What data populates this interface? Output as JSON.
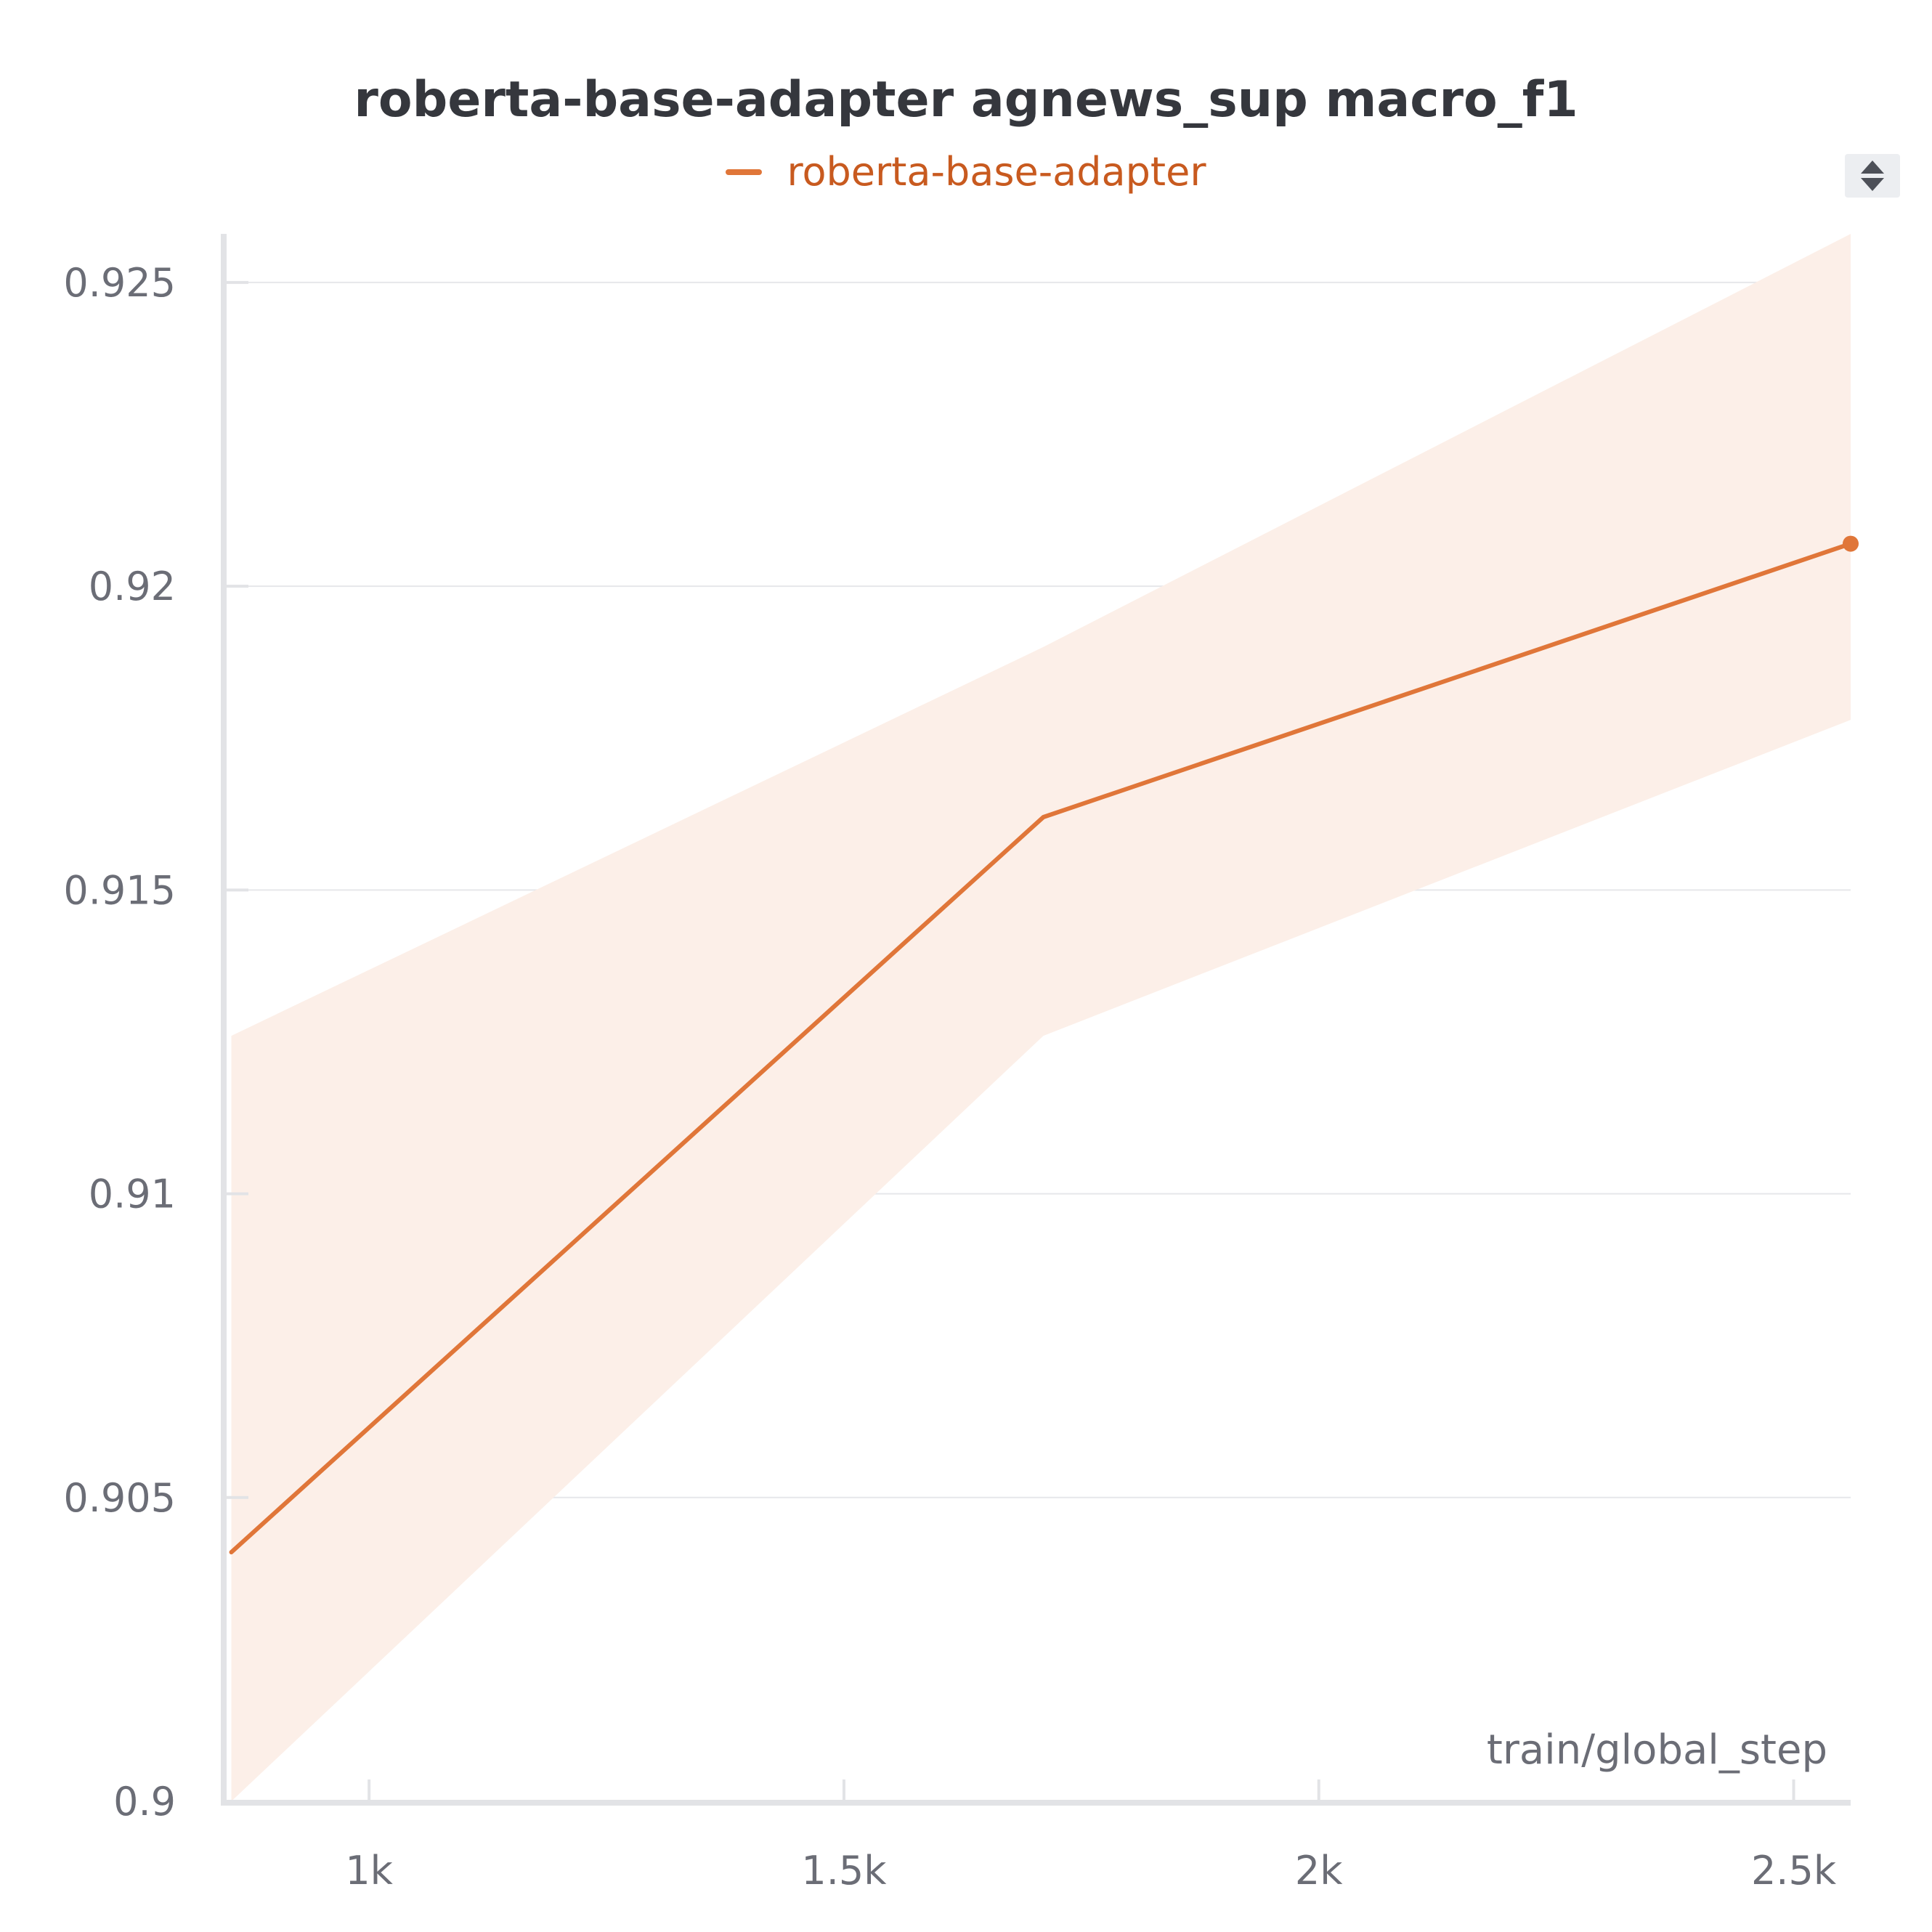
{
  "chart_data": {
    "type": "line",
    "title": "roberta-base-adapter agnews_sup macro_f1",
    "xlabel": "train/global_step",
    "ylabel": "",
    "xlim": [
      850,
      2560
    ],
    "ylim": [
      0.9,
      0.9258
    ],
    "x_ticks": [
      1000,
      1500,
      2000,
      2500
    ],
    "x_tick_labels": [
      "1k",
      "1.5k",
      "2k",
      "2.5k"
    ],
    "y_ticks": [
      0.9,
      0.905,
      0.91,
      0.915,
      0.92,
      0.925
    ],
    "y_tick_labels": [
      "0.9",
      "0.905",
      "0.91",
      "0.915",
      "0.92",
      "0.925"
    ],
    "grid": true,
    "legend_position": "top-center",
    "series": [
      {
        "name": "roberta-base-adapter",
        "color": "#e07639",
        "band_color": "#fcefe8",
        "x": [
          855,
          1710,
          2565
        ],
        "y": [
          0.9041,
          0.9162,
          0.9207
        ],
        "band_upper": [
          0.9126,
          0.919,
          0.9258
        ],
        "band_lower": [
          0.9,
          0.9126,
          0.9178
        ]
      }
    ]
  },
  "controls": {
    "sort_icon": "sort-arrows-icon"
  }
}
